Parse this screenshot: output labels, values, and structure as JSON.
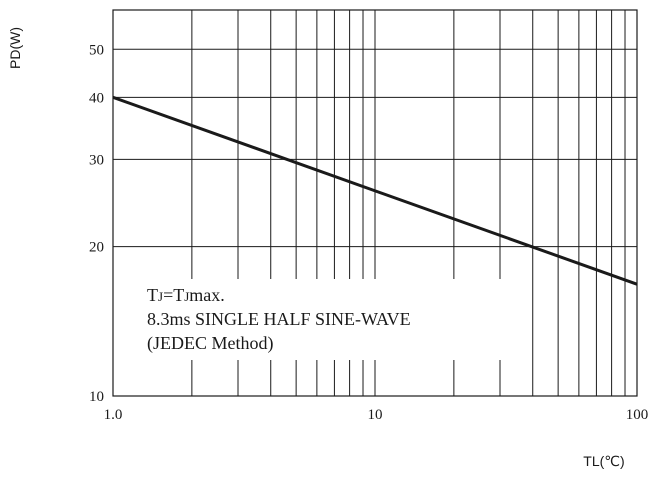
{
  "chart_data": {
    "type": "line",
    "title": "",
    "xlabel": "TL(℃)",
    "ylabel": "PD(W)",
    "xscale": "log",
    "yscale": "log",
    "xlim": [
      1,
      100
    ],
    "ylim": [
      10,
      60
    ],
    "grid": true,
    "x_ticks": [
      1,
      10,
      100
    ],
    "x_tick_labels": [
      "1.0",
      "10",
      "100"
    ],
    "y_ticks": [
      10,
      20,
      30,
      40,
      50
    ],
    "y_tick_labels": [
      "10",
      "20",
      "30",
      "40",
      "50"
    ],
    "series": [
      {
        "x": [
          1,
          100
        ],
        "y": [
          40,
          16.8
        ]
      }
    ],
    "annotation": {
      "line1_prefix": "T",
      "line1_sub1": "J",
      "line1_mid": "=T",
      "line1_sub2": "J",
      "line1_suffix": "max.",
      "line2": "8.3ms SINGLE HALF SINE-WAVE",
      "line3": "(JEDEC Method)"
    }
  }
}
